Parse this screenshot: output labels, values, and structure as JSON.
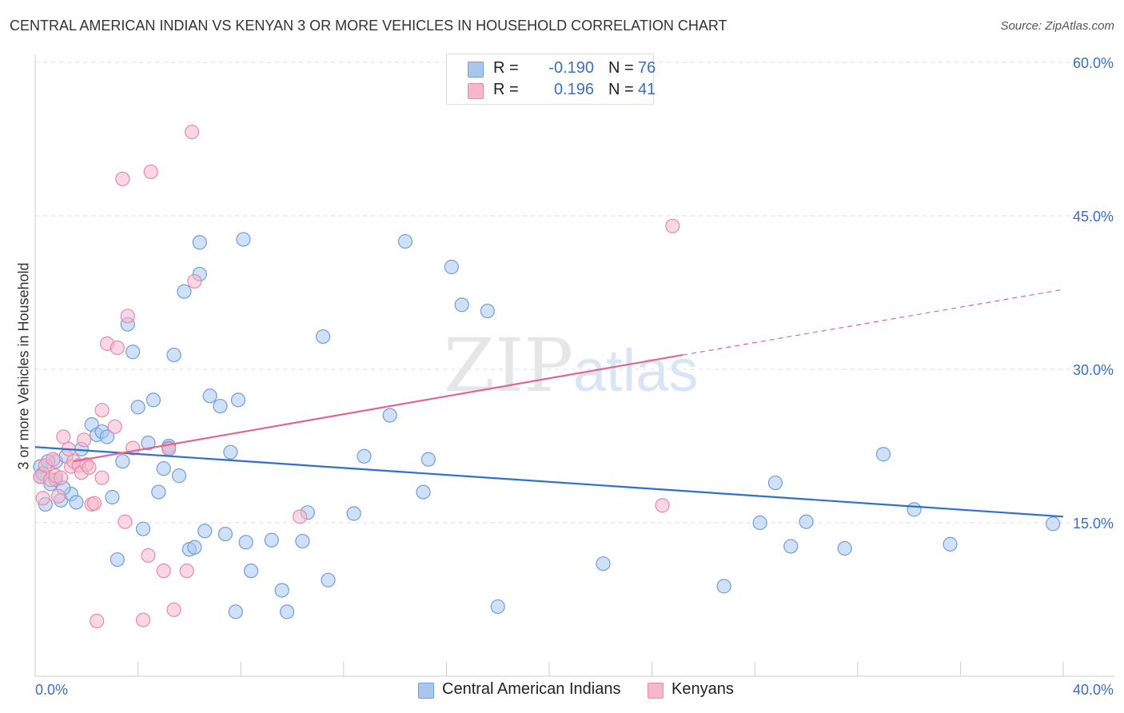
{
  "title": "CENTRAL AMERICAN INDIAN VS KENYAN 3 OR MORE VEHICLES IN HOUSEHOLD CORRELATION CHART",
  "source": "Source: ZipAtlas.com",
  "watermark": {
    "zip": "ZIP",
    "atlas": "atlas"
  },
  "colors": {
    "blue_fill": "#a9c6ef",
    "blue_stroke": "#6f9fdc",
    "blue_line": "#2f6fcf",
    "pink_fill": "#f6b7ca",
    "pink_stroke": "#e98aa8",
    "pink_line": "#e0668f",
    "tick_text": "#3a6fc4",
    "grid": "#dddddd"
  },
  "legend": {
    "rows": [
      {
        "r_label": "R =",
        "r_value": "-0.190",
        "n_label": "N =",
        "n_value": "76"
      },
      {
        "r_label": "R =",
        "r_value": "0.196",
        "n_label": "N =",
        "n_value": "41"
      }
    ]
  },
  "chart_data": {
    "type": "scatter",
    "title": "CENTRAL AMERICAN INDIAN VS KENYAN 3 OR MORE VEHICLES IN HOUSEHOLD CORRELATION CHART",
    "xlabel": "",
    "ylabel": "3 or more Vehicles in Household",
    "xlim": [
      0,
      40
    ],
    "ylim": [
      0,
      60
    ],
    "x_tick_labels": [
      "0.0%",
      "40.0%"
    ],
    "y_ticks": [
      15,
      30,
      45,
      60
    ],
    "y_tick_labels": [
      "15.0%",
      "30.0%",
      "45.0%",
      "60.0%"
    ],
    "grid": true,
    "legend_position": "bottom",
    "series": [
      {
        "name": "Central American Indians",
        "color": "#a9c6ef",
        "points": [
          [
            0.2,
            20.5
          ],
          [
            0.2,
            19.5
          ],
          [
            0.4,
            16.8
          ],
          [
            0.6,
            18.8
          ],
          [
            0.8,
            21.0
          ],
          [
            0.8,
            19.2
          ],
          [
            1.0,
            17.2
          ],
          [
            1.2,
            21.5
          ],
          [
            1.4,
            17.8
          ],
          [
            1.6,
            17.0
          ],
          [
            1.8,
            22.2
          ],
          [
            2.2,
            24.6
          ],
          [
            2.4,
            23.6
          ],
          [
            2.6,
            23.9
          ],
          [
            2.8,
            23.4
          ],
          [
            3.0,
            17.5
          ],
          [
            3.2,
            11.4
          ],
          [
            3.4,
            21.0
          ],
          [
            3.6,
            34.4
          ],
          [
            3.8,
            31.7
          ],
          [
            4.0,
            26.3
          ],
          [
            4.2,
            14.4
          ],
          [
            4.4,
            22.8
          ],
          [
            4.6,
            27.0
          ],
          [
            4.8,
            18.0
          ],
          [
            5.0,
            20.3
          ],
          [
            5.2,
            22.5
          ],
          [
            5.2,
            22.3
          ],
          [
            5.4,
            31.4
          ],
          [
            5.6,
            19.6
          ],
          [
            5.8,
            37.6
          ],
          [
            6.0,
            12.4
          ],
          [
            6.2,
            12.6
          ],
          [
            6.4,
            39.3
          ],
          [
            6.4,
            42.4
          ],
          [
            6.6,
            14.2
          ],
          [
            6.8,
            27.4
          ],
          [
            7.2,
            26.4
          ],
          [
            7.4,
            13.9
          ],
          [
            7.6,
            21.9
          ],
          [
            7.8,
            6.3
          ],
          [
            7.9,
            27.0
          ],
          [
            8.1,
            42.7
          ],
          [
            8.2,
            13.1
          ],
          [
            8.4,
            10.3
          ],
          [
            9.2,
            13.3
          ],
          [
            9.6,
            8.4
          ],
          [
            9.8,
            6.3
          ],
          [
            10.4,
            13.2
          ],
          [
            10.6,
            16.0
          ],
          [
            11.2,
            33.2
          ],
          [
            11.4,
            9.4
          ],
          [
            12.4,
            15.9
          ],
          [
            12.8,
            21.5
          ],
          [
            13.8,
            25.5
          ],
          [
            14.4,
            42.5
          ],
          [
            15.1,
            18.0
          ],
          [
            15.3,
            21.2
          ],
          [
            16.2,
            40.0
          ],
          [
            16.6,
            36.3
          ],
          [
            17.6,
            35.7
          ],
          [
            18.0,
            6.8
          ],
          [
            22.1,
            11.0
          ],
          [
            26.8,
            8.8
          ],
          [
            28.2,
            15.0
          ],
          [
            28.8,
            18.9
          ],
          [
            29.4,
            12.7
          ],
          [
            30.0,
            15.1
          ],
          [
            31.5,
            12.5
          ],
          [
            33.0,
            21.7
          ],
          [
            34.2,
            16.3
          ],
          [
            35.6,
            12.9
          ],
          [
            39.6,
            14.9
          ],
          [
            0.3,
            19.8
          ],
          [
            1.1,
            18.4
          ],
          [
            0.5,
            21.0
          ]
        ]
      },
      {
        "name": "Kenyans",
        "color": "#f6b7ca",
        "points": [
          [
            0.2,
            19.5
          ],
          [
            0.3,
            17.4
          ],
          [
            0.4,
            20.6
          ],
          [
            0.6,
            19.2
          ],
          [
            0.8,
            19.6
          ],
          [
            0.9,
            17.6
          ],
          [
            1.1,
            23.4
          ],
          [
            1.3,
            22.2
          ],
          [
            1.4,
            20.5
          ],
          [
            1.5,
            21.0
          ],
          [
            1.7,
            20.6
          ],
          [
            1.8,
            19.9
          ],
          [
            1.9,
            23.1
          ],
          [
            2.0,
            20.7
          ],
          [
            2.2,
            16.8
          ],
          [
            2.3,
            16.9
          ],
          [
            2.4,
            5.4
          ],
          [
            2.6,
            26.0
          ],
          [
            2.6,
            19.4
          ],
          [
            2.8,
            32.5
          ],
          [
            3.1,
            24.4
          ],
          [
            3.2,
            32.1
          ],
          [
            3.4,
            48.6
          ],
          [
            3.5,
            15.1
          ],
          [
            3.6,
            35.2
          ],
          [
            3.8,
            22.3
          ],
          [
            4.2,
            5.5
          ],
          [
            4.4,
            11.8
          ],
          [
            4.5,
            49.3
          ],
          [
            5.0,
            10.3
          ],
          [
            5.2,
            22.2
          ],
          [
            5.4,
            6.5
          ],
          [
            5.9,
            10.3
          ],
          [
            6.1,
            53.2
          ],
          [
            6.2,
            38.6
          ],
          [
            10.3,
            15.6
          ],
          [
            24.8,
            44.0
          ],
          [
            24.4,
            16.7
          ],
          [
            1.0,
            19.4
          ],
          [
            0.7,
            21.2
          ],
          [
            2.1,
            20.4
          ]
        ]
      }
    ],
    "trend_lines": [
      {
        "series": "Central American Indians",
        "x": [
          0,
          40
        ],
        "y": [
          22.4,
          15.6
        ],
        "style": "solid"
      },
      {
        "series": "Kenyans",
        "x": [
          1.5,
          25.2,
          40
        ],
        "y": [
          21.0,
          31.4,
          37.8
        ],
        "style": "solid-then-dashed"
      }
    ]
  },
  "bottom_legend": {
    "items": [
      {
        "label": "Central American Indians"
      },
      {
        "label": "Kenyans"
      }
    ]
  }
}
